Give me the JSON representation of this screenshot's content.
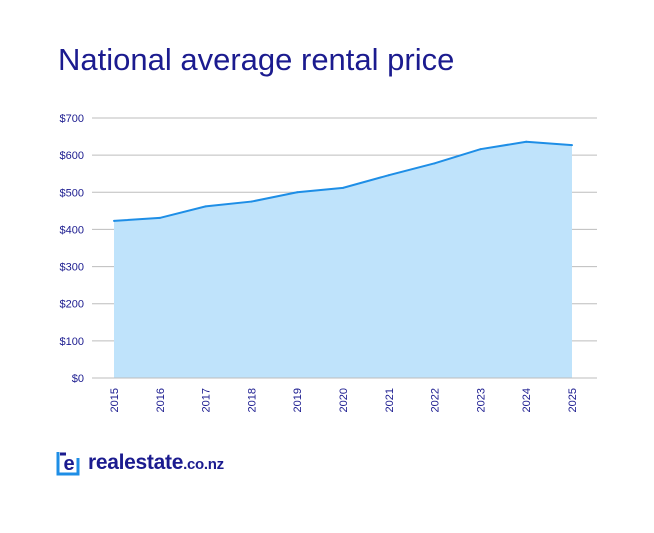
{
  "chart_data": {
    "type": "area",
    "title": "National average rental price",
    "xlabel": "",
    "ylabel": "",
    "categories": [
      "2015",
      "2016",
      "2017",
      "2018",
      "2019",
      "2020",
      "2021",
      "2022",
      "2023",
      "2024",
      "2025"
    ],
    "values": [
      423,
      431,
      462,
      475,
      500,
      512,
      546,
      578,
      616,
      636,
      627
    ],
    "yticks": [
      "$0",
      "$100",
      "$200",
      "$300",
      "$400",
      "$500",
      "$600",
      "$700"
    ],
    "ylim": [
      0,
      700
    ],
    "grid": true,
    "colors": {
      "line": "#1e8ee6",
      "fill": "#bfe3fb",
      "grid": "#bdbdbd",
      "title": "#1b1b8f"
    }
  },
  "brand": {
    "name": "realestate",
    "suffix": ".co.nz"
  }
}
